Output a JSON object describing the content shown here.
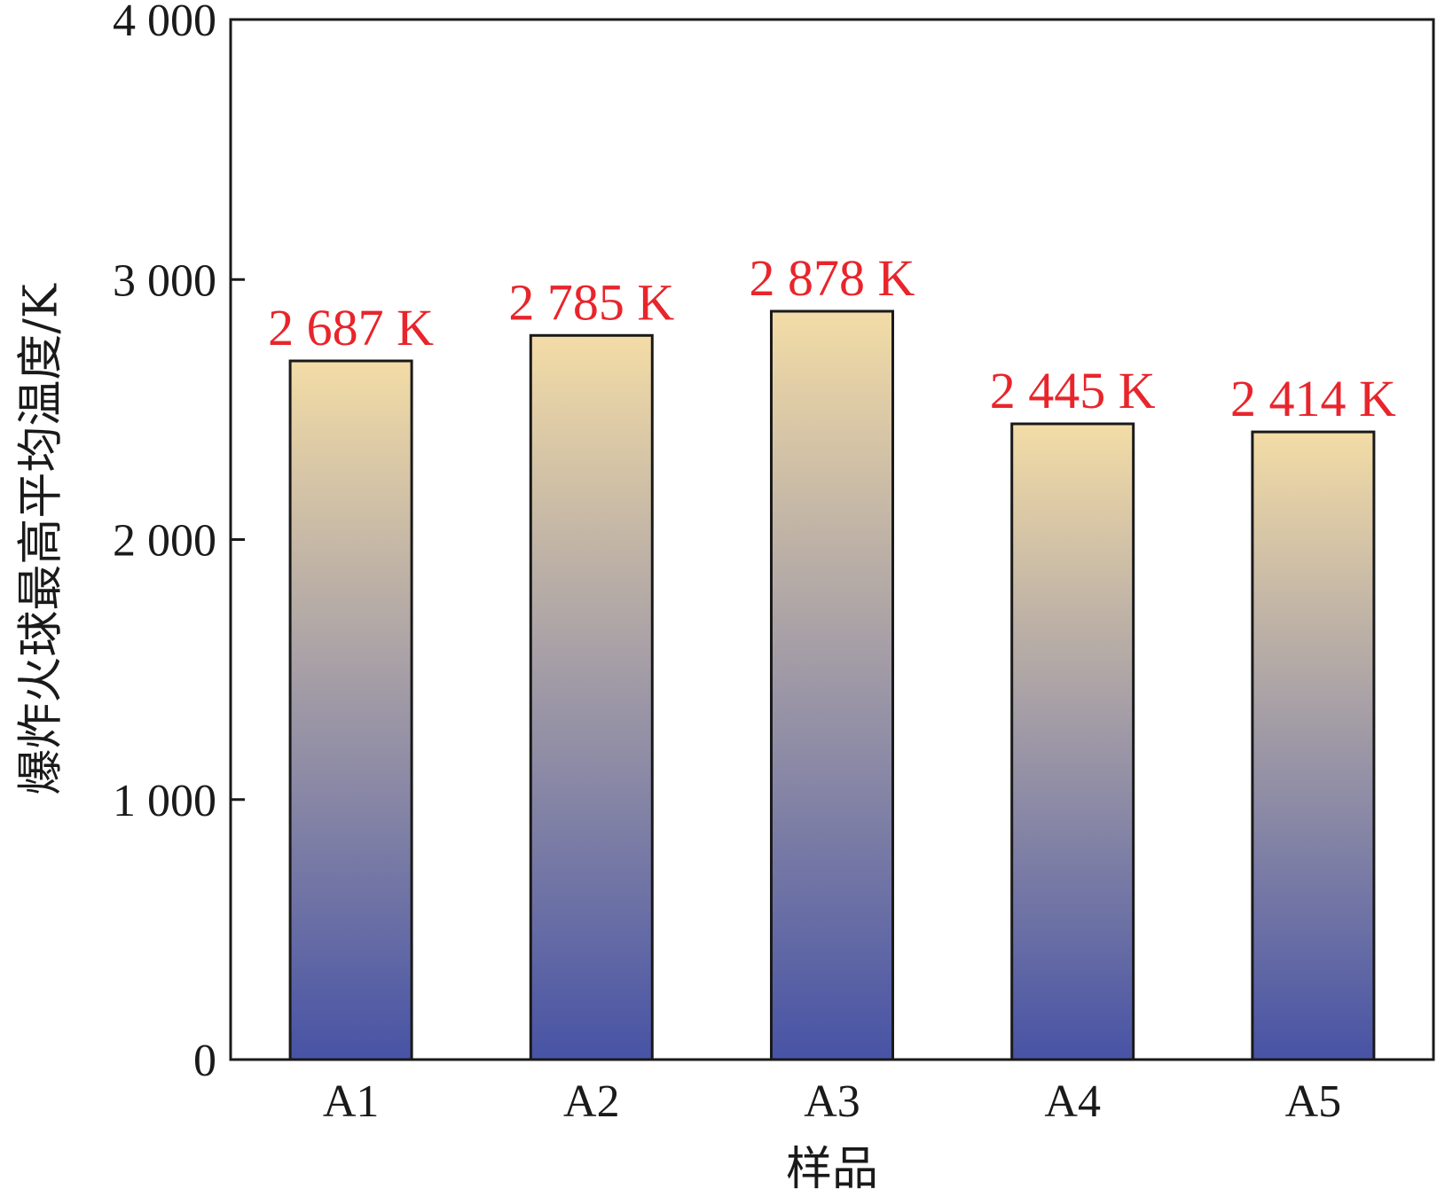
{
  "chart_data": {
    "type": "bar",
    "categories": [
      "A1",
      "A2",
      "A3",
      "A4",
      "A5"
    ],
    "values": [
      2687,
      2785,
      2878,
      2445,
      2414
    ],
    "data_labels": [
      "2 687 K",
      "2 785 K",
      "2 878 K",
      "2 445 K",
      "2 414 K"
    ],
    "xlabel": "样品",
    "ylabel": "爆炸火球最高平均温度/K",
    "ylim": [
      0,
      4000
    ],
    "yticks": [
      0,
      1000,
      2000,
      3000,
      4000
    ],
    "ytick_labels": [
      "0",
      "1 000",
      "2 000",
      "3 000",
      "4 000"
    ],
    "grid": false,
    "legend": "none",
    "colors": {
      "bar_top": "#f3dca6",
      "bar_bottom": "#4753a5",
      "data_label": "#e8252b",
      "axis": "#1a1a1a"
    }
  }
}
